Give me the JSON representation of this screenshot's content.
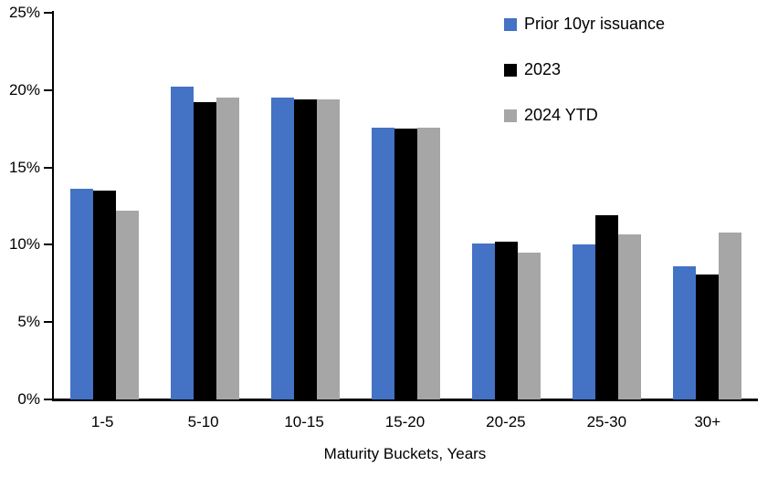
{
  "chart_data": {
    "type": "bar",
    "title": "",
    "xlabel": "Maturity Buckets, Years",
    "ylabel": "",
    "ylim": [
      0,
      25
    ],
    "grid": false,
    "legend_position": "top-right",
    "yticks": [
      {
        "value": 0,
        "label": "0%"
      },
      {
        "value": 5,
        "label": "5%"
      },
      {
        "value": 10,
        "label": "10%"
      },
      {
        "value": 15,
        "label": "15%"
      },
      {
        "value": 20,
        "label": "20%"
      },
      {
        "value": 25,
        "label": "25%"
      }
    ],
    "categories": [
      "1-5",
      "5-10",
      "10-15",
      "15-20",
      "20-25",
      "25-30",
      "30+"
    ],
    "series": [
      {
        "name": "Prior 10yr issuance",
        "color": "#4472C4",
        "values": [
          13.6,
          20.2,
          19.5,
          17.6,
          10.1,
          10.0,
          8.6
        ]
      },
      {
        "name": "2023",
        "color": "#000000",
        "values": [
          13.5,
          19.2,
          19.4,
          17.5,
          10.2,
          11.9,
          8.1
        ]
      },
      {
        "name": "2024 YTD",
        "color": "#A6A6A6",
        "values": [
          12.2,
          19.5,
          19.4,
          17.6,
          9.5,
          10.7,
          10.8
        ]
      }
    ],
    "colors": {
      "axis": "#000000",
      "text": "#000000",
      "background": "#FFFFFF"
    }
  }
}
